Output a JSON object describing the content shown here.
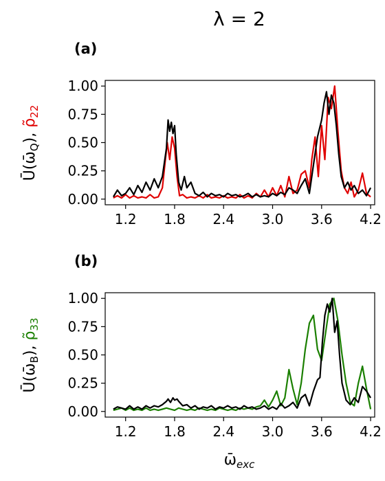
{
  "chart_data": [
    {
      "type": "line",
      "panel_label": "(b)",
      "xlabel": "ω̄exc",
      "xlabel_main": "ω̄",
      "xlabel_sub": "exc",
      "ylabel_parts": [
        "Ū(ω̄",
        "B",
        "),  ",
        "ρ̃",
        "33"
      ],
      "xlim": [
        0.95,
        4.25
      ],
      "ylim": [
        -0.05,
        1.05
      ],
      "x_ticks": [
        "1.2",
        "1.8",
        "2.4",
        "3.0",
        "3.6",
        "4.2"
      ],
      "y_ticks": [
        "0.00",
        "0.25",
        "0.50",
        "0.75",
        "1.00"
      ],
      "grid": false,
      "series": [
        {
          "color": "#1a7f00",
          "x": [
            1.05,
            1.1,
            1.15,
            1.2,
            1.25,
            1.3,
            1.35,
            1.4,
            1.45,
            1.5,
            1.55,
            1.6,
            1.65,
            1.7,
            1.75,
            1.8,
            1.85,
            1.9,
            1.95,
            2.0,
            2.05,
            2.1,
            2.15,
            2.2,
            2.25,
            2.3,
            2.35,
            2.4,
            2.45,
            2.5,
            2.55,
            2.6,
            2.65,
            2.7,
            2.75,
            2.8,
            2.85,
            2.9,
            2.95,
            3.0,
            3.05,
            3.1,
            3.15,
            3.2,
            3.25,
            3.3,
            3.35,
            3.4,
            3.45,
            3.5,
            3.55,
            3.6,
            3.65,
            3.7,
            3.75,
            3.8,
            3.85,
            3.9,
            3.95,
            4.0,
            4.05,
            4.1,
            4.15,
            4.2
          ],
          "y": [
            0.01,
            0.02,
            0.03,
            0.01,
            0.03,
            0.01,
            0.02,
            0.01,
            0.03,
            0.01,
            0.02,
            0.01,
            0.02,
            0.03,
            0.02,
            0.01,
            0.03,
            0.02,
            0.01,
            0.02,
            0.01,
            0.03,
            0.02,
            0.01,
            0.02,
            0.01,
            0.03,
            0.02,
            0.01,
            0.02,
            0.01,
            0.03,
            0.02,
            0.03,
            0.02,
            0.04,
            0.05,
            0.1,
            0.04,
            0.1,
            0.18,
            0.05,
            0.12,
            0.37,
            0.2,
            0.06,
            0.25,
            0.55,
            0.78,
            0.85,
            0.55,
            0.45,
            0.7,
            0.95,
            1.0,
            0.8,
            0.5,
            0.25,
            0.08,
            0.05,
            0.25,
            0.4,
            0.2,
            0.02
          ]
        },
        {
          "color": "#000000",
          "x": [
            1.05,
            1.1,
            1.15,
            1.2,
            1.25,
            1.3,
            1.35,
            1.4,
            1.45,
            1.5,
            1.55,
            1.6,
            1.65,
            1.7,
            1.72,
            1.75,
            1.78,
            1.8,
            1.83,
            1.85,
            1.9,
            1.95,
            2.0,
            2.05,
            2.1,
            2.15,
            2.2,
            2.25,
            2.3,
            2.35,
            2.4,
            2.45,
            2.5,
            2.55,
            2.6,
            2.65,
            2.7,
            2.75,
            2.8,
            2.85,
            2.9,
            2.95,
            3.0,
            3.05,
            3.1,
            3.15,
            3.2,
            3.25,
            3.3,
            3.35,
            3.4,
            3.45,
            3.5,
            3.55,
            3.58,
            3.61,
            3.64,
            3.67,
            3.7,
            3.73,
            3.76,
            3.79,
            3.82,
            3.85,
            3.9,
            3.95,
            4.0,
            4.05,
            4.1,
            4.15,
            4.2
          ],
          "y": [
            0.02,
            0.04,
            0.03,
            0.02,
            0.05,
            0.02,
            0.04,
            0.02,
            0.05,
            0.03,
            0.05,
            0.04,
            0.06,
            0.09,
            0.11,
            0.08,
            0.12,
            0.1,
            0.11,
            0.09,
            0.05,
            0.06,
            0.03,
            0.05,
            0.02,
            0.04,
            0.03,
            0.05,
            0.02,
            0.04,
            0.03,
            0.05,
            0.03,
            0.04,
            0.02,
            0.05,
            0.03,
            0.04,
            0.02,
            0.03,
            0.05,
            0.02,
            0.04,
            0.02,
            0.07,
            0.03,
            0.05,
            0.08,
            0.03,
            0.12,
            0.15,
            0.05,
            0.18,
            0.28,
            0.3,
            0.62,
            0.85,
            0.95,
            0.88,
            1.0,
            0.7,
            0.8,
            0.5,
            0.25,
            0.1,
            0.06,
            0.12,
            0.08,
            0.22,
            0.18,
            0.12
          ]
        }
      ]
    },
    {
      "type": "line",
      "panel_label": "(a)",
      "xlim": [
        0.95,
        4.25
      ],
      "ylim": [
        -0.05,
        1.05
      ],
      "x_ticks": [
        "1.2",
        "1.8",
        "2.4",
        "3.0",
        "3.6",
        "4.2"
      ],
      "y_ticks": [
        "0.00",
        "0.25",
        "0.50",
        "0.75",
        "1.00"
      ],
      "ylabel_parts": [
        "Ū(ω̄",
        "Q",
        "),  ",
        "ρ̃",
        "22"
      ],
      "grid": false,
      "series": [
        {
          "color": "#e00000",
          "x": [
            1.05,
            1.1,
            1.15,
            1.2,
            1.25,
            1.3,
            1.35,
            1.4,
            1.45,
            1.5,
            1.55,
            1.6,
            1.65,
            1.68,
            1.71,
            1.74,
            1.77,
            1.8,
            1.83,
            1.86,
            1.9,
            1.95,
            2.0,
            2.05,
            2.1,
            2.15,
            2.2,
            2.25,
            2.3,
            2.35,
            2.4,
            2.45,
            2.5,
            2.55,
            2.6,
            2.65,
            2.7,
            2.75,
            2.8,
            2.85,
            2.9,
            2.95,
            3.0,
            3.05,
            3.1,
            3.15,
            3.2,
            3.25,
            3.3,
            3.35,
            3.4,
            3.45,
            3.48,
            3.52,
            3.56,
            3.6,
            3.64,
            3.68,
            3.72,
            3.76,
            3.8,
            3.84,
            3.88,
            3.92,
            3.96,
            4.0,
            4.05,
            4.1,
            4.15,
            4.2
          ],
          "y": [
            0.01,
            0.03,
            0.01,
            0.04,
            0.01,
            0.03,
            0.01,
            0.02,
            0.01,
            0.04,
            0.01,
            0.02,
            0.1,
            0.3,
            0.5,
            0.35,
            0.55,
            0.45,
            0.2,
            0.03,
            0.04,
            0.01,
            0.02,
            0.01,
            0.03,
            0.01,
            0.04,
            0.01,
            0.02,
            0.01,
            0.03,
            0.01,
            0.02,
            0.01,
            0.04,
            0.01,
            0.03,
            0.01,
            0.05,
            0.02,
            0.08,
            0.02,
            0.1,
            0.03,
            0.12,
            0.02,
            0.2,
            0.05,
            0.08,
            0.22,
            0.25,
            0.1,
            0.35,
            0.55,
            0.2,
            0.65,
            0.35,
            0.9,
            0.8,
            1.0,
            0.6,
            0.25,
            0.1,
            0.05,
            0.15,
            0.02,
            0.08,
            0.23,
            0.05,
            0.02
          ]
        },
        {
          "color": "#000000",
          "x": [
            1.05,
            1.1,
            1.15,
            1.2,
            1.25,
            1.3,
            1.35,
            1.4,
            1.45,
            1.5,
            1.55,
            1.6,
            1.65,
            1.7,
            1.72,
            1.74,
            1.76,
            1.78,
            1.8,
            1.82,
            1.85,
            1.88,
            1.92,
            1.95,
            2.0,
            2.05,
            2.1,
            2.15,
            2.2,
            2.25,
            2.3,
            2.35,
            2.4,
            2.45,
            2.5,
            2.55,
            2.6,
            2.65,
            2.7,
            2.75,
            2.8,
            2.85,
            2.9,
            2.95,
            3.0,
            3.05,
            3.1,
            3.15,
            3.2,
            3.25,
            3.3,
            3.35,
            3.4,
            3.45,
            3.5,
            3.55,
            3.6,
            3.63,
            3.66,
            3.69,
            3.72,
            3.75,
            3.78,
            3.81,
            3.84,
            3.88,
            3.92,
            3.96,
            4.0,
            4.05,
            4.1,
            4.15,
            4.2
          ],
          "y": [
            0.02,
            0.08,
            0.03,
            0.05,
            0.1,
            0.04,
            0.12,
            0.06,
            0.15,
            0.08,
            0.18,
            0.1,
            0.2,
            0.45,
            0.7,
            0.6,
            0.68,
            0.58,
            0.65,
            0.4,
            0.15,
            0.08,
            0.2,
            0.1,
            0.15,
            0.05,
            0.03,
            0.06,
            0.02,
            0.05,
            0.03,
            0.04,
            0.02,
            0.05,
            0.03,
            0.04,
            0.02,
            0.03,
            0.05,
            0.02,
            0.04,
            0.02,
            0.03,
            0.02,
            0.05,
            0.03,
            0.06,
            0.04,
            0.1,
            0.08,
            0.05,
            0.12,
            0.18,
            0.05,
            0.3,
            0.55,
            0.7,
            0.85,
            0.95,
            0.75,
            0.92,
            0.85,
            0.65,
            0.4,
            0.2,
            0.1,
            0.15,
            0.08,
            0.12,
            0.05,
            0.08,
            0.03,
            0.1
          ]
        }
      ]
    }
  ],
  "figure": {
    "title": "λ = 2"
  }
}
